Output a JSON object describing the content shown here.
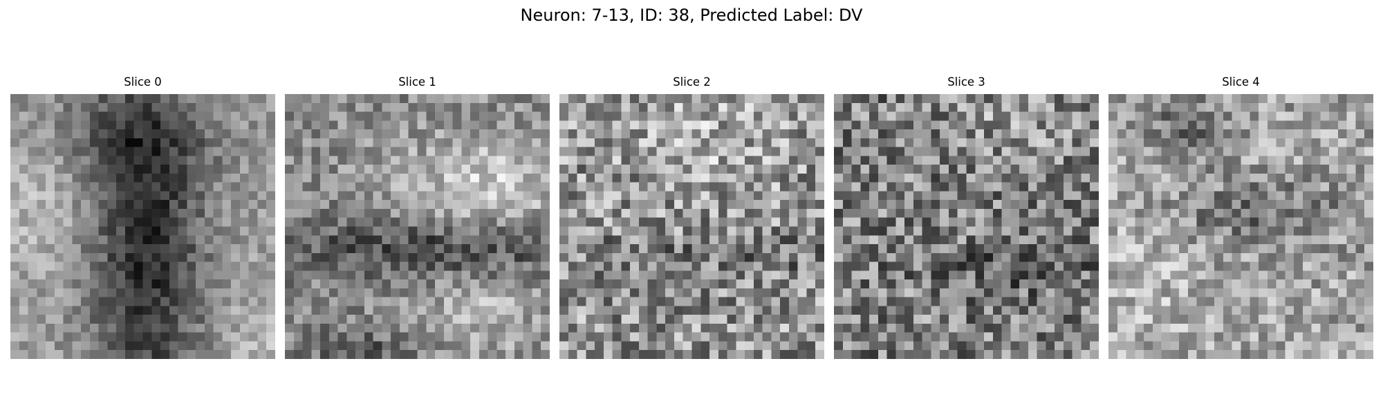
{
  "figure": {
    "suptitle": "Neuron: 7-13, ID: 38, Predicted Label: DV",
    "colormap": "gray",
    "axes_visible": false
  },
  "slices": [
    {
      "title": "Slice 0",
      "pattern": "dark vertical band through center, lighter patches at left and right"
    },
    {
      "title": "Slice 1",
      "pattern": "light region upper right, dark horizontal band across middle"
    },
    {
      "title": "Slice 2",
      "pattern": "fine grainy texture, lighter top center"
    },
    {
      "title": "Slice 3",
      "pattern": "grainy mid-gray texture, dark streak lower middle"
    },
    {
      "title": "Slice 4",
      "pattern": "light grainy texture, dark cluster upper left and center"
    }
  ]
}
